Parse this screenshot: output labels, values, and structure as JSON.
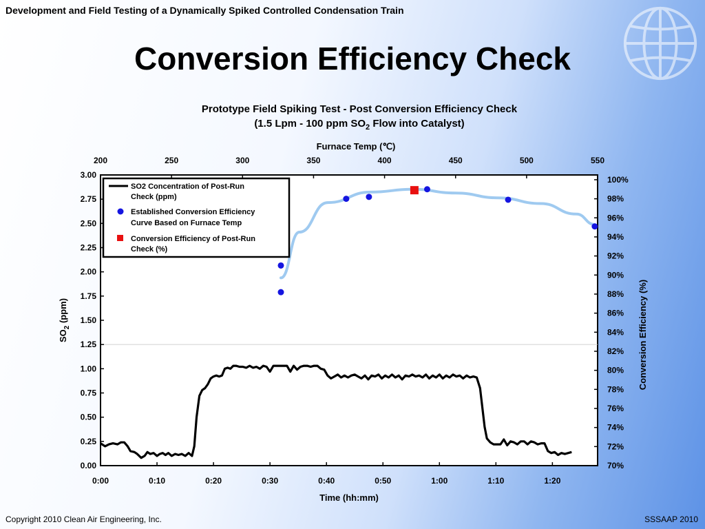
{
  "slide": {
    "header": "Development and Field Testing of a Dynamically Spiked Controlled Condensation Train",
    "title": "Conversion Efficiency Check",
    "footer_left": "Copyright 2010 Clean Air Engineering, Inc.",
    "footer_right": "SSSAAP 2010"
  },
  "chart_data": {
    "type": "line",
    "title_line1": "Prototype Field Spiking Test - Post Conversion Efficiency Check",
    "title_line2_pre": "(1.5 Lpm - 100 ppm SO",
    "title_line2_sub": "2",
    "title_line2_post": " Flow into Catalyst)",
    "x_bottom": {
      "label": "Time (hh:mm)",
      "ticks": [
        "0:00",
        "0:10",
        "0:20",
        "0:30",
        "0:40",
        "0:50",
        "1:00",
        "1:10",
        "1:20"
      ],
      "range_min": [
        0,
        88
      ]
    },
    "x_top": {
      "label": "Furnace Temp (℃)",
      "ticks": [
        200,
        250,
        300,
        350,
        400,
        450,
        500,
        550
      ],
      "range": [
        200,
        550
      ]
    },
    "y_left": {
      "label_pre": "SO",
      "label_sub": "2",
      "label_post": " (ppm)",
      "ticks": [
        "0.00",
        "0.25",
        "0.50",
        "0.75",
        "1.00",
        "1.25",
        "1.50",
        "1.75",
        "2.00",
        "2.25",
        "2.50",
        "2.75",
        "3.00"
      ],
      "range": [
        0,
        3
      ]
    },
    "y_right": {
      "label": "Conversion Efficiency (%)",
      "ticks": [
        "70%",
        "72%",
        "74%",
        "76%",
        "78%",
        "80%",
        "82%",
        "84%",
        "86%",
        "88%",
        "90%",
        "92%",
        "94%",
        "96%",
        "98%",
        "100%"
      ],
      "range": [
        70,
        100.5
      ]
    },
    "gridline_y": 1.25,
    "legend": {
      "position": "top-left",
      "items": [
        {
          "line1": "SO2 Concentration of Post-Run",
          "line2": "Check (ppm)",
          "marker": "line",
          "color": "#000000"
        },
        {
          "line1": "Established Conversion Efficiency",
          "line2": "Curve Based on Furnace Temp",
          "marker": "circle",
          "color": "#1515e0"
        },
        {
          "line1": "Conversion Efficiency of Post-Run",
          "line2": "Check (%)",
          "marker": "square",
          "color": "#e81010"
        }
      ]
    },
    "series": [
      {
        "name": "SO2 Concentration of Post-Run Check (ppm)",
        "axis": "time_so2",
        "color": "#000000",
        "points": [
          [
            0,
            0.23
          ],
          [
            0.8,
            0.2
          ],
          [
            1.5,
            0.22
          ],
          [
            2.2,
            0.23
          ],
          [
            3,
            0.22
          ],
          [
            3.6,
            0.24
          ],
          [
            4.2,
            0.24
          ],
          [
            4.8,
            0.2
          ],
          [
            5.3,
            0.15
          ],
          [
            6,
            0.14
          ],
          [
            6.5,
            0.12
          ],
          [
            7.2,
            0.08
          ],
          [
            7.8,
            0.1
          ],
          [
            8.3,
            0.14
          ],
          [
            8.8,
            0.12
          ],
          [
            9.4,
            0.13
          ],
          [
            10,
            0.1
          ],
          [
            10.5,
            0.12
          ],
          [
            11,
            0.13
          ],
          [
            11.5,
            0.11
          ],
          [
            12,
            0.13
          ],
          [
            12.6,
            0.1
          ],
          [
            13.2,
            0.12
          ],
          [
            13.8,
            0.11
          ],
          [
            14.4,
            0.12
          ],
          [
            15,
            0.1
          ],
          [
            15.6,
            0.13
          ],
          [
            16.2,
            0.1
          ],
          [
            16.6,
            0.2
          ],
          [
            17,
            0.5
          ],
          [
            17.5,
            0.72
          ],
          [
            18,
            0.78
          ],
          [
            18.5,
            0.8
          ],
          [
            19,
            0.84
          ],
          [
            19.5,
            0.9
          ],
          [
            20,
            0.92
          ],
          [
            20.5,
            0.93
          ],
          [
            21,
            0.92
          ],
          [
            21.5,
            0.93
          ],
          [
            22,
            1.0
          ],
          [
            22.5,
            1.01
          ],
          [
            23,
            1.0
          ],
          [
            23.5,
            1.03
          ],
          [
            24,
            1.03
          ],
          [
            24.6,
            1.02
          ],
          [
            25.2,
            1.02
          ],
          [
            25.8,
            1.01
          ],
          [
            26.4,
            1.03
          ],
          [
            27,
            1.01
          ],
          [
            27.6,
            1.02
          ],
          [
            28.2,
            1.0
          ],
          [
            28.8,
            1.03
          ],
          [
            29.4,
            1.02
          ],
          [
            30,
            0.97
          ],
          [
            30.6,
            1.03
          ],
          [
            31.2,
            1.03
          ],
          [
            31.8,
            1.03
          ],
          [
            32.4,
            1.03
          ],
          [
            33,
            1.03
          ],
          [
            33.6,
            0.97
          ],
          [
            34.2,
            1.03
          ],
          [
            34.8,
            0.99
          ],
          [
            35.4,
            1.02
          ],
          [
            36,
            1.03
          ],
          [
            36.6,
            1.03
          ],
          [
            37.2,
            1.02
          ],
          [
            37.8,
            1.03
          ],
          [
            38.4,
            1.03
          ],
          [
            39,
            1.0
          ],
          [
            39.6,
            0.99
          ],
          [
            40.2,
            0.93
          ],
          [
            40.8,
            0.9
          ],
          [
            41.4,
            0.92
          ],
          [
            42,
            0.94
          ],
          [
            42.6,
            0.91
          ],
          [
            43.2,
            0.93
          ],
          [
            43.8,
            0.91
          ],
          [
            44.4,
            0.93
          ],
          [
            45,
            0.94
          ],
          [
            45.6,
            0.92
          ],
          [
            46.2,
            0.9
          ],
          [
            46.8,
            0.93
          ],
          [
            47.4,
            0.89
          ],
          [
            48,
            0.93
          ],
          [
            48.6,
            0.92
          ],
          [
            49.2,
            0.94
          ],
          [
            49.8,
            0.9
          ],
          [
            50.4,
            0.93
          ],
          [
            51,
            0.91
          ],
          [
            51.6,
            0.94
          ],
          [
            52.2,
            0.91
          ],
          [
            52.8,
            0.93
          ],
          [
            53.4,
            0.89
          ],
          [
            54,
            0.93
          ],
          [
            54.6,
            0.92
          ],
          [
            55.2,
            0.94
          ],
          [
            55.8,
            0.92
          ],
          [
            56.4,
            0.93
          ],
          [
            57,
            0.91
          ],
          [
            57.6,
            0.94
          ],
          [
            58.2,
            0.9
          ],
          [
            58.8,
            0.93
          ],
          [
            59.4,
            0.91
          ],
          [
            60,
            0.94
          ],
          [
            60.6,
            0.9
          ],
          [
            61.2,
            0.93
          ],
          [
            61.8,
            0.91
          ],
          [
            62.4,
            0.94
          ],
          [
            63,
            0.92
          ],
          [
            63.6,
            0.93
          ],
          [
            64.2,
            0.9
          ],
          [
            64.8,
            0.93
          ],
          [
            65.4,
            0.91
          ],
          [
            66,
            0.92
          ],
          [
            66.6,
            0.91
          ],
          [
            67.2,
            0.8
          ],
          [
            67.6,
            0.6
          ],
          [
            68,
            0.4
          ],
          [
            68.4,
            0.28
          ],
          [
            69,
            0.24
          ],
          [
            69.6,
            0.22
          ],
          [
            70.2,
            0.22
          ],
          [
            70.8,
            0.22
          ],
          [
            71.4,
            0.27
          ],
          [
            72,
            0.21
          ],
          [
            72.6,
            0.25
          ],
          [
            73.2,
            0.24
          ],
          [
            73.8,
            0.22
          ],
          [
            74.4,
            0.25
          ],
          [
            75,
            0.25
          ],
          [
            75.6,
            0.22
          ],
          [
            76.2,
            0.25
          ],
          [
            76.8,
            0.24
          ],
          [
            77.4,
            0.22
          ],
          [
            78,
            0.23
          ],
          [
            78.6,
            0.23
          ],
          [
            79.2,
            0.15
          ],
          [
            79.8,
            0.13
          ],
          [
            80.4,
            0.14
          ],
          [
            81,
            0.11
          ],
          [
            81.6,
            0.13
          ],
          [
            82.2,
            0.12
          ],
          [
            82.8,
            0.13
          ],
          [
            83.4,
            0.14
          ]
        ]
      },
      {
        "name": "Established Conversion Efficiency Curve Based on Furnace Temp",
        "axis": "temp_efficiency",
        "color": "#1515e0",
        "curve_color": "#9fcaf0",
        "points": [
          [
            327,
            91.0
          ],
          [
            327,
            88.2
          ],
          [
            373,
            98.0
          ],
          [
            389,
            98.2
          ],
          [
            430,
            99.0
          ],
          [
            487,
            97.9
          ],
          [
            548,
            95.1
          ]
        ],
        "curve": [
          [
            327,
            89.7
          ],
          [
            340,
            94.5
          ],
          [
            360,
            97.6
          ],
          [
            390,
            98.7
          ],
          [
            420,
            99.0
          ],
          [
            450,
            98.6
          ],
          [
            480,
            98.1
          ],
          [
            510,
            97.5
          ],
          [
            535,
            96.4
          ],
          [
            548,
            95.3
          ]
        ]
      },
      {
        "name": "Conversion Efficiency of Post-Run Check (%)",
        "axis": "temp_efficiency",
        "color": "#e81010",
        "points": [
          [
            421,
            98.9
          ]
        ]
      }
    ]
  }
}
